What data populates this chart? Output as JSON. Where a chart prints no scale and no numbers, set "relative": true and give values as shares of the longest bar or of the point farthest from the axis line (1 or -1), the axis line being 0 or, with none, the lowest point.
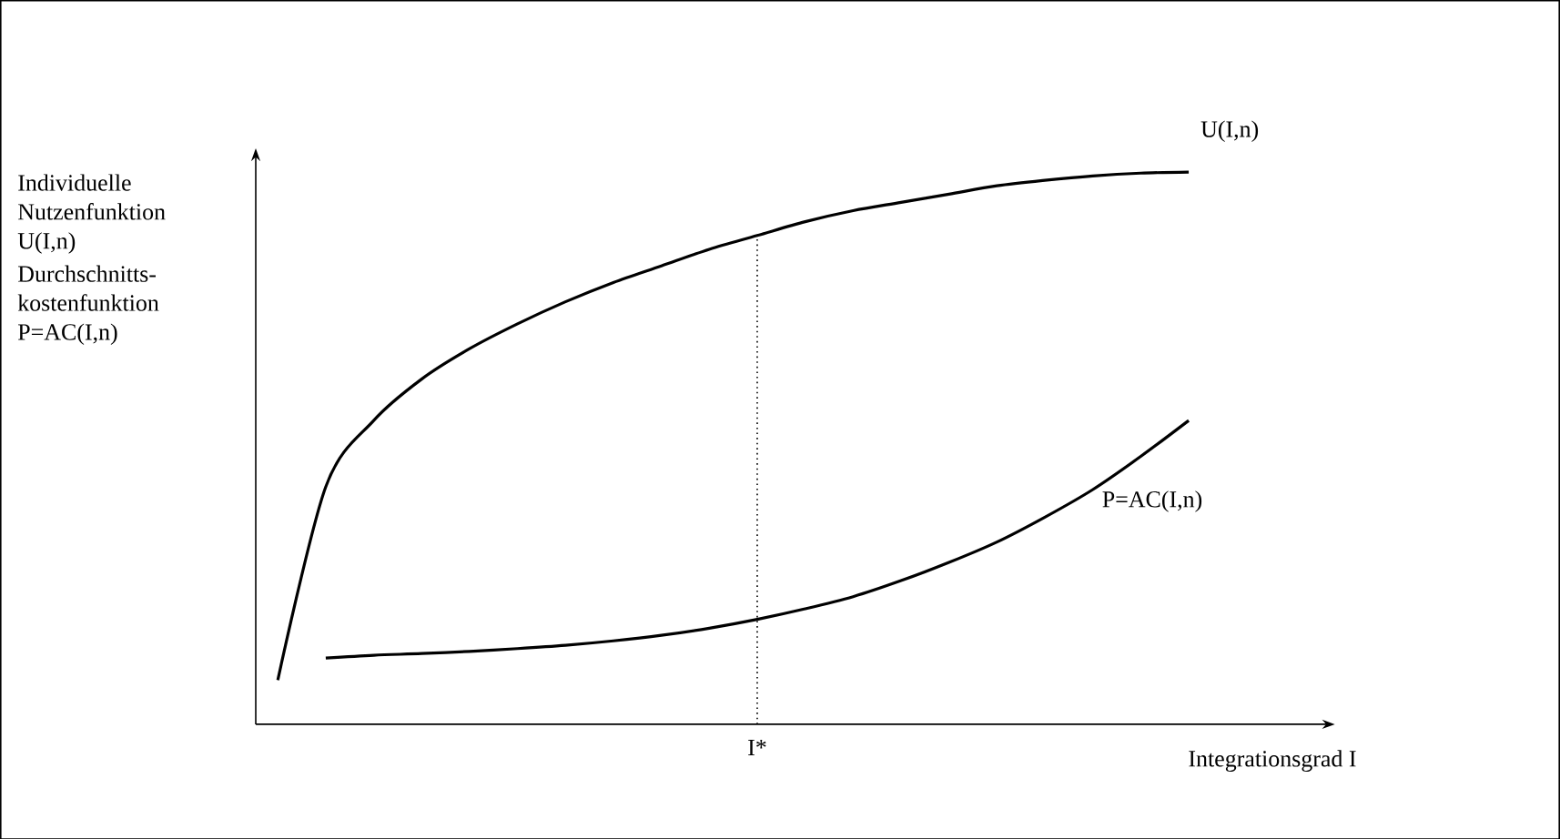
{
  "chart_data": {
    "type": "line",
    "relative": true,
    "ylabel": "Individuelle Nutzenfunktion U(I,n)",
    "xlabel": "Integrationsgrad I",
    "annotations": [
      "Durchschnitts-kostenfunktion P=AC(I,n)",
      "I*"
    ],
    "categories": [
      null,
      null,
      null,
      null,
      null,
      null,
      null,
      null,
      null,
      null,
      null,
      null,
      null,
      null,
      null,
      null,
      null,
      null,
      null,
      null
    ],
    "series": [
      {
        "name": "U(I,n)",
        "color": "#000000",
        "values": [
          0.08,
          0.43,
          0.55,
          0.625,
          0.68,
          0.725,
          0.765,
          0.8,
          0.83,
          0.86,
          0.885,
          0.91,
          0.93,
          0.945,
          0.96,
          0.975,
          0.985,
          0.993,
          0.998,
          1.0
        ]
      },
      {
        "name": "P=AC(I,n)",
        "color": "#000000",
        "values": [
          null,
          0.12,
          0.125,
          0.128,
          0.132,
          0.137,
          0.143,
          0.151,
          0.161,
          0.174,
          0.19,
          0.209,
          0.231,
          0.26,
          0.293,
          0.33,
          0.375,
          0.425,
          0.485,
          0.55
        ]
      }
    ],
    "marker": "none",
    "line_style": "solid"
  }
}
